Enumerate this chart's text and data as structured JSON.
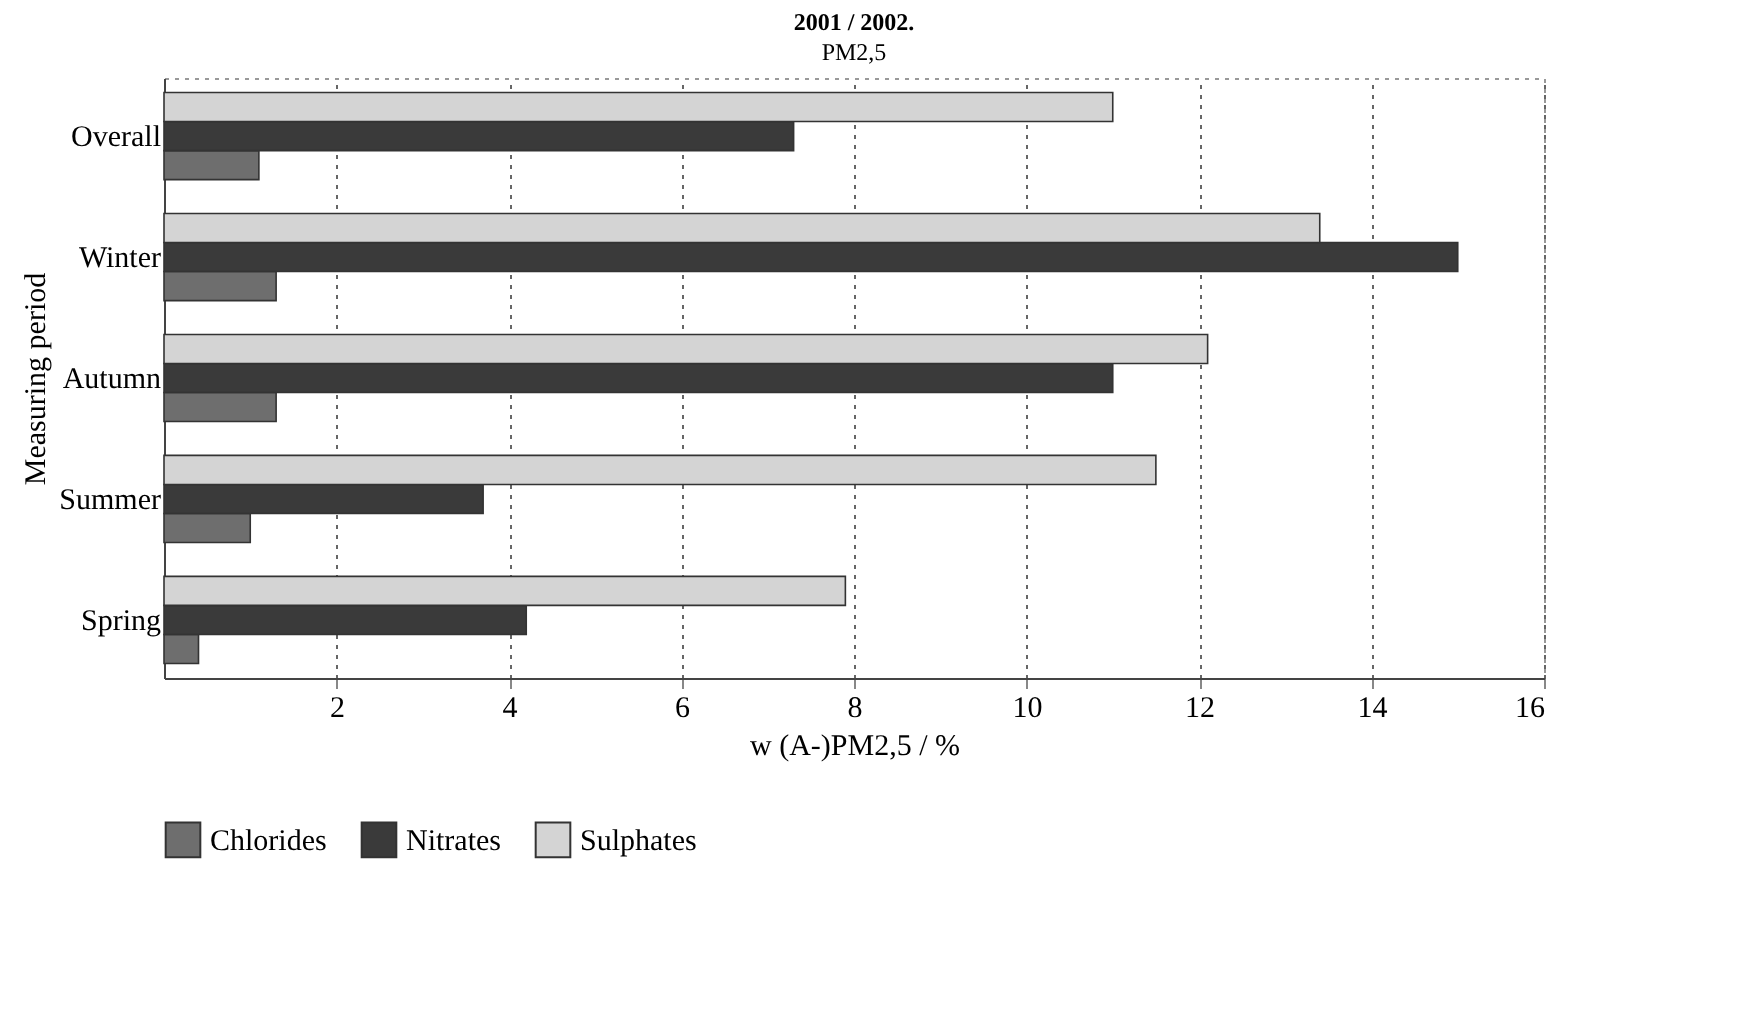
{
  "chart_data": {
    "type": "bar",
    "orientation": "horizontal",
    "title": "2001 / 2002.",
    "subtitle": "PM2,5",
    "xlabel": "w (A-)PM2,5 / %",
    "ylabel": "Measuring period",
    "categories": [
      "Overall",
      "Winter",
      "Autumn",
      "Summer",
      "Spring"
    ],
    "series": [
      {
        "name": "Chlorides",
        "color": "#6e6e6e",
        "values": [
          1.1,
          1.3,
          1.3,
          1.0,
          0.4
        ]
      },
      {
        "name": "Nitrates",
        "color": "#3a3a3a",
        "values": [
          7.3,
          15.0,
          11.0,
          3.7,
          4.2
        ]
      },
      {
        "name": "Sulphates",
        "color": "#d4d4d4",
        "values": [
          11.0,
          13.4,
          12.1,
          11.5,
          7.9
        ]
      }
    ],
    "xlim": [
      0,
      16
    ],
    "xticks": [
      2,
      4,
      6,
      8,
      10,
      12,
      14,
      16
    ],
    "grid": "x",
    "legend": "bottom"
  }
}
